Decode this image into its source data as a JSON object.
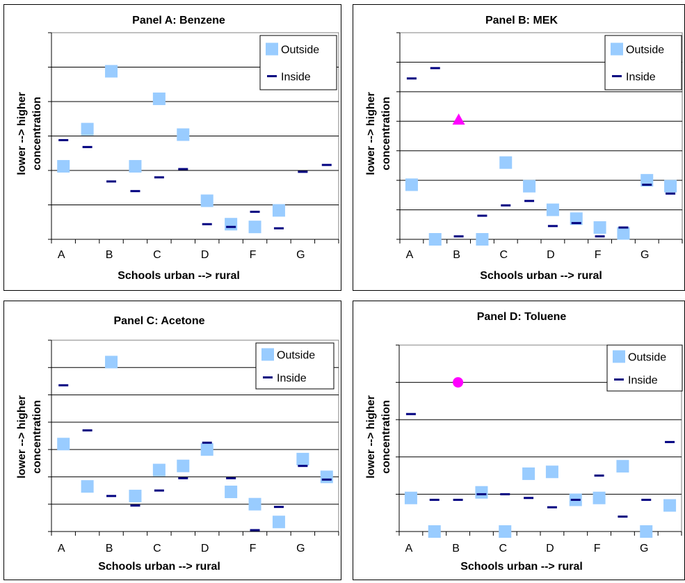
{
  "colors": {
    "outside": "#99ccff",
    "inside": "#000080",
    "highlight": "#ff00ff",
    "grid": "#000000",
    "plot_border": "#808080"
  },
  "chart_data": [
    {
      "type": "scatter",
      "title": "Panel A:  Benzene",
      "xlabel": "Schools urban --> rural",
      "ylabel": [
        "lower --> higher",
        "concentration"
      ],
      "categories": [
        "A",
        "",
        "B",
        "",
        "C",
        "",
        "D",
        "",
        "F",
        "",
        "G",
        ""
      ],
      "ylim": [
        0,
        7.5
      ],
      "grid": true,
      "legend_position": "top-right",
      "series": [
        {
          "name": "Outside",
          "marker": "square",
          "values": [
            2.65,
            4.0,
            6.1,
            2.65,
            5.1,
            3.8,
            1.4,
            0.55,
            0.45,
            1.05,
            null,
            null
          ]
        },
        {
          "name": "Inside",
          "marker": "dash",
          "values": [
            3.6,
            3.35,
            2.1,
            1.75,
            2.25,
            2.55,
            0.55,
            0.45,
            1.0,
            0.4,
            2.45,
            2.7
          ]
        }
      ]
    },
    {
      "type": "scatter",
      "title": "Panel B:  MEK",
      "xlabel": "Schools urban --> rural",
      "ylabel": [
        "lower --> higher",
        "concentration"
      ],
      "categories": [
        "A",
        "",
        "B",
        "",
        "C",
        "",
        "D",
        "",
        "F",
        "",
        "G",
        ""
      ],
      "ylim": [
        0,
        7.0
      ],
      "grid": true,
      "legend_position": "top-right",
      "series": [
        {
          "name": "Outside",
          "marker": "square",
          "values": [
            1.85,
            0.0,
            null,
            0.0,
            2.6,
            1.8,
            1.0,
            0.7,
            0.4,
            0.2,
            2.0,
            1.8
          ]
        },
        {
          "name": "Inside",
          "marker": "dash",
          "values": [
            5.45,
            5.8,
            0.1,
            0.8,
            1.15,
            1.3,
            0.45,
            0.55,
            0.1,
            0.4,
            1.85,
            1.55
          ]
        },
        {
          "name": "",
          "marker": "triangle",
          "values": [
            null,
            null,
            4.05,
            null,
            null,
            null,
            null,
            null,
            null,
            null,
            null,
            null
          ]
        }
      ]
    },
    {
      "type": "scatter",
      "title": "Panel C:  Acetone",
      "xlabel": "Schools urban --> rural",
      "ylabel": [
        "lower --> higher",
        "concentration"
      ],
      "categories": [
        "A",
        "",
        "B",
        "",
        "C",
        "",
        "D",
        "",
        "F",
        "",
        "G",
        ""
      ],
      "ylim": [
        0,
        7.0
      ],
      "grid": true,
      "legend_position": "top-right",
      "series": [
        {
          "name": "Outside",
          "marker": "square",
          "values": [
            3.2,
            1.65,
            6.2,
            1.3,
            2.25,
            2.4,
            3.0,
            1.45,
            1.0,
            0.35,
            2.65,
            2.0
          ]
        },
        {
          "name": "Inside",
          "marker": "dash",
          "values": [
            5.35,
            3.7,
            1.3,
            0.95,
            1.5,
            1.95,
            3.25,
            1.95,
            0.05,
            0.9,
            2.4,
            1.9
          ]
        }
      ]
    },
    {
      "type": "scatter",
      "title": "Panel D:  Toluene",
      "xlabel": "Schools urban --> rural",
      "ylabel": [
        "lower --> higher",
        "concentration"
      ],
      "categories": [
        "A",
        "",
        "B",
        "",
        "C",
        "",
        "D",
        "",
        "F",
        "",
        "G",
        ""
      ],
      "ylim": [
        0,
        5.0
      ],
      "grid": true,
      "legend_position": "top-right",
      "series": [
        {
          "name": "Outside",
          "marker": "square",
          "values": [
            0.9,
            0.0,
            null,
            1.05,
            0.0,
            1.55,
            1.6,
            0.85,
            0.9,
            1.75,
            0.0,
            0.7
          ]
        },
        {
          "name": "Inside",
          "marker": "dash",
          "values": [
            3.15,
            0.85,
            0.85,
            1.0,
            1.0,
            0.9,
            0.65,
            0.85,
            1.5,
            0.4,
            0.85,
            2.4
          ]
        },
        {
          "name": "",
          "marker": "circle",
          "values": [
            null,
            null,
            4.0,
            null,
            null,
            null,
            null,
            null,
            null,
            null,
            null,
            null
          ]
        }
      ]
    }
  ]
}
